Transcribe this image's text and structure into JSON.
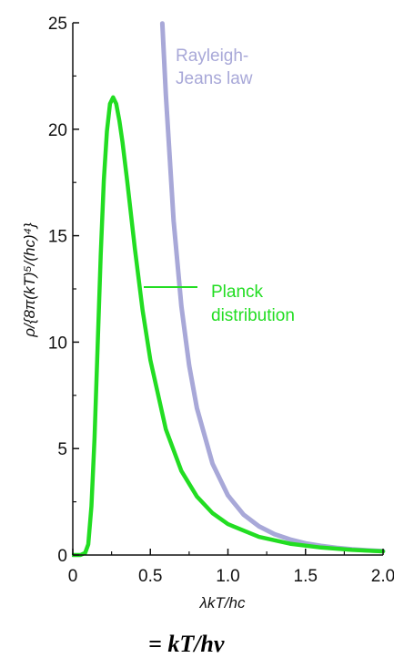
{
  "chart_data": {
    "type": "line",
    "xlabel": "λkT/hc",
    "ylabel": "ρ/{8π(kT)⁵/(hc)⁴}",
    "xlim": [
      0,
      2.0
    ],
    "ylim": [
      0,
      25
    ],
    "x_ticks": [
      "0",
      "0.5",
      "1.0",
      "1.5",
      "2.0"
    ],
    "y_ticks": [
      "0",
      "5",
      "10",
      "15",
      "20",
      "25"
    ],
    "grid": false,
    "series": [
      {
        "name": "Rayleigh-Jeans law",
        "color": "#a8a8d8",
        "x": [
          0.577,
          0.6,
          0.65,
          0.7,
          0.75,
          0.8,
          0.9,
          1.0,
          1.1,
          1.2,
          1.3,
          1.4,
          1.5,
          1.6,
          1.7,
          1.8,
          1.9,
          2.0
        ],
        "y": [
          24.97,
          21.6,
          15.7,
          11.7,
          8.9,
          6.9,
          4.3,
          2.8,
          1.9,
          1.35,
          0.98,
          0.73,
          0.55,
          0.43,
          0.34,
          0.27,
          0.22,
          0.18
        ]
      },
      {
        "name": "Planck distribution",
        "color": "#22dd22",
        "x": [
          0.0,
          0.05,
          0.08,
          0.1,
          0.12,
          0.14,
          0.16,
          0.18,
          0.2,
          0.22,
          0.24,
          0.26,
          0.28,
          0.3,
          0.32,
          0.35,
          0.4,
          0.45,
          0.5,
          0.6,
          0.7,
          0.8,
          0.9,
          1.0,
          1.2,
          1.4,
          1.6,
          1.8,
          2.0
        ],
        "y": [
          0.0,
          0.0,
          0.1,
          0.5,
          2.3,
          5.5,
          9.8,
          14.1,
          17.6,
          19.9,
          21.2,
          21.5,
          21.2,
          20.4,
          19.4,
          17.6,
          14.4,
          11.5,
          9.15,
          5.9,
          3.95,
          2.75,
          1.97,
          1.45,
          0.85,
          0.53,
          0.35,
          0.24,
          0.17
        ]
      }
    ],
    "annotations": {
      "rayleigh_jeans": [
        "Rayleigh-",
        "Jeans law"
      ],
      "planck": [
        "Planck",
        "distribution"
      ]
    }
  },
  "caption": "= kT/hν"
}
